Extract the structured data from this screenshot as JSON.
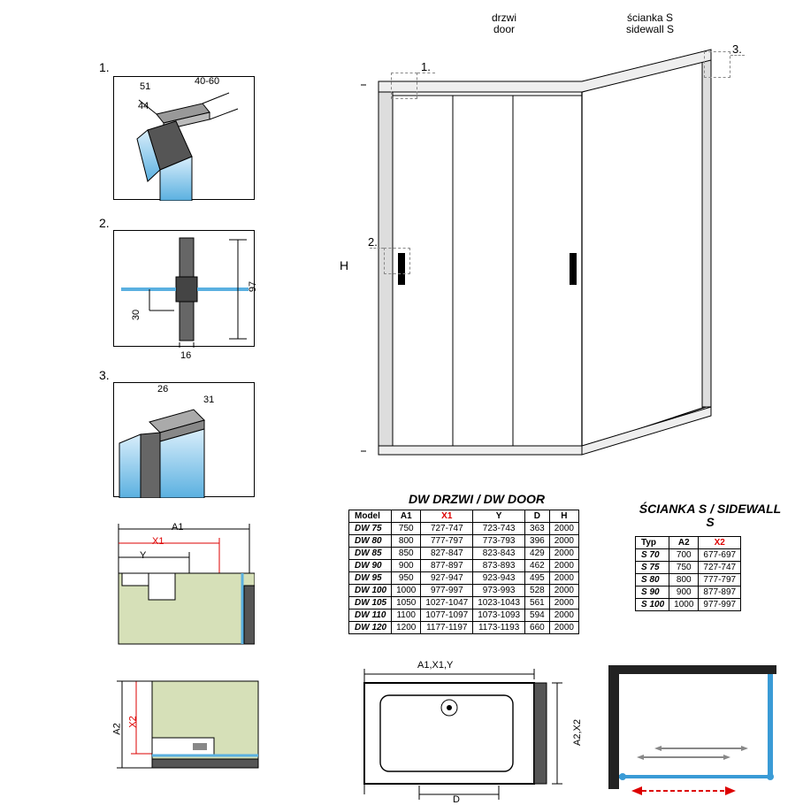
{
  "detail_numbers": {
    "d1": "1.",
    "d2": "2.",
    "d3": "3."
  },
  "detail1_dims": {
    "a": "51",
    "b": "44",
    "c": "40-60"
  },
  "detail2_dims": {
    "h": "97",
    "w": "16",
    "off": "30"
  },
  "detail3_dims": {
    "a": "26",
    "b": "31"
  },
  "section_dims": {
    "A1": "A1",
    "Y": "Y",
    "X1": "X1",
    "A2": "A2",
    "X2": "X2"
  },
  "main_labels": {
    "door_pl": "drzwi",
    "door_en": "door",
    "side_pl": "ścianka S",
    "side_en": "sidewall S",
    "H": "H"
  },
  "callout_nums": {
    "c1": "1.",
    "c2": "2.",
    "c3": "3."
  },
  "plan_labels": {
    "top": "A1,",
    "top_red": "X1",
    "top2": ",Y",
    "right": "A2,",
    "right_red": "X2",
    "D": "D"
  },
  "table_door": {
    "title": "DW DRZWI / DW DOOR",
    "headers": [
      "Model",
      "A1",
      "X1",
      "Y",
      "D",
      "H"
    ],
    "redcol": 2,
    "rows": [
      [
        "DW 75",
        "750",
        "727-747",
        "723-743",
        "363",
        "2000"
      ],
      [
        "DW 80",
        "800",
        "777-797",
        "773-793",
        "396",
        "2000"
      ],
      [
        "DW 85",
        "850",
        "827-847",
        "823-843",
        "429",
        "2000"
      ],
      [
        "DW 90",
        "900",
        "877-897",
        "873-893",
        "462",
        "2000"
      ],
      [
        "DW 95",
        "950",
        "927-947",
        "923-943",
        "495",
        "2000"
      ],
      [
        "DW 100",
        "1000",
        "977-997",
        "973-993",
        "528",
        "2000"
      ],
      [
        "DW 105",
        "1050",
        "1027-1047",
        "1023-1043",
        "561",
        "2000"
      ],
      [
        "DW 110",
        "1100",
        "1077-1097",
        "1073-1093",
        "594",
        "2000"
      ],
      [
        "DW 120",
        "1200",
        "1177-1197",
        "1173-1193",
        "660",
        "2000"
      ]
    ]
  },
  "table_side": {
    "title": "ŚCIANKA S / SIDEWALL S",
    "headers": [
      "Typ",
      "A2",
      "X2"
    ],
    "redcol": 2,
    "rows": [
      [
        "S 70",
        "700",
        "677-697"
      ],
      [
        "S 75",
        "750",
        "727-747"
      ],
      [
        "S 80",
        "800",
        "777-797"
      ],
      [
        "S 90",
        "900",
        "877-897"
      ],
      [
        "S 100",
        "1000",
        "977-997"
      ]
    ]
  },
  "colors": {
    "glass_light": "#cae6f7",
    "glass_dark": "#3a9bd6",
    "profile": "#555",
    "red": "#d00",
    "green_hatch": "#d6e0b8",
    "wall": "#222"
  }
}
